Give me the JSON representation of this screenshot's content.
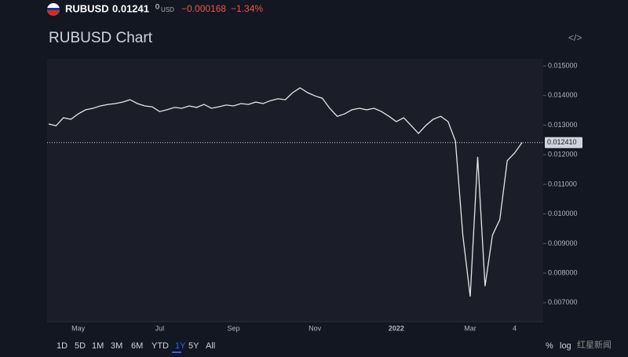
{
  "header": {
    "symbol": "RUBUSD",
    "price": "0.01241",
    "price_small": "0",
    "currency": "USD",
    "change": "−0.000168",
    "change_pct": "−1.34%"
  },
  "chart_data": {
    "type": "line",
    "title": "RUBUSD Chart",
    "categories": [
      null,
      null,
      null,
      null,
      "May",
      null,
      null,
      null,
      null,
      null,
      null,
      null,
      null,
      null,
      null,
      "Jul",
      null,
      null,
      null,
      null,
      null,
      null,
      null,
      null,
      null,
      "Sep",
      null,
      null,
      null,
      null,
      null,
      null,
      null,
      null,
      null,
      null,
      "Nov",
      null,
      null,
      null,
      null,
      null,
      null,
      null,
      null,
      null,
      null,
      "2022",
      null,
      null,
      null,
      null,
      null,
      null,
      null,
      null,
      null,
      "Mar",
      null,
      null,
      null,
      null,
      null,
      "4",
      null
    ],
    "values": [
      0.01304,
      0.01298,
      0.01325,
      0.0132,
      0.01338,
      0.01352,
      0.01357,
      0.01365,
      0.0137,
      0.01373,
      0.01378,
      0.01386,
      0.01373,
      0.01365,
      0.01362,
      0.01346,
      0.01352,
      0.0136,
      0.01357,
      0.01365,
      0.0136,
      0.0137,
      0.01357,
      0.01362,
      0.01368,
      0.01365,
      0.01373,
      0.0137,
      0.01378,
      0.01373,
      0.01383,
      0.01389,
      0.01386,
      0.0141,
      0.01426,
      0.0141,
      0.01399,
      0.01391,
      0.01357,
      0.0133,
      0.01338,
      0.01352,
      0.01357,
      0.01352,
      0.01357,
      0.01346,
      0.0133,
      0.01312,
      0.01325,
      0.01299,
      0.01272,
      0.01299,
      0.0132,
      0.0133,
      0.01312,
      0.01246,
      0.00928,
      0.00721,
      0.01193,
      0.00756,
      0.00928,
      0.00981,
      0.0118,
      0.01206,
      0.01241
    ],
    "color": "#e6e6e6",
    "ylim": [
      0.00636,
      0.01524
    ],
    "yticks": [
      {
        "value": 0.007,
        "label": "0.007000"
      },
      {
        "value": 0.008,
        "label": "0.008000"
      },
      {
        "value": 0.009,
        "label": "0.009000"
      },
      {
        "value": 0.01,
        "label": "0.010000"
      },
      {
        "value": 0.011,
        "label": "0.011000"
      },
      {
        "value": 0.012,
        "label": "0.012000"
      },
      {
        "value": 0.013,
        "label": "0.013000"
      },
      {
        "value": 0.014,
        "label": "0.014000"
      },
      {
        "value": 0.015,
        "label": "0.015000"
      }
    ],
    "last_price": {
      "value": 0.01241,
      "label": "0.012410"
    }
  },
  "toolbar": {
    "ranges": [
      "1D",
      "5D",
      "1M",
      "3M",
      "6M",
      "YTD",
      "1Y",
      "5Y",
      "All"
    ],
    "active": "1Y",
    "percent": "%",
    "log": "log"
  },
  "watermark": "红星新闻"
}
